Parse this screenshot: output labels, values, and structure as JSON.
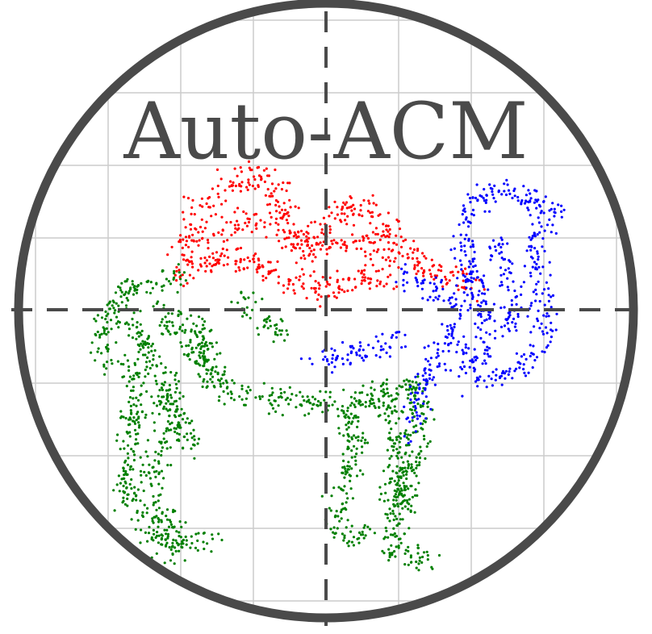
{
  "logo": {
    "title": "Auto-ACM",
    "colors": {
      "ring": "#4a4a4a",
      "grid": "#cccccc",
      "crosshair": "#4a4a4a",
      "title": "#4a4a4a",
      "hump_cluster": "#ff0000",
      "body_legs_cluster": "#008000",
      "head_neck_cluster": "#0000ff"
    },
    "point_clusters": [
      "red",
      "green",
      "blue"
    ]
  }
}
